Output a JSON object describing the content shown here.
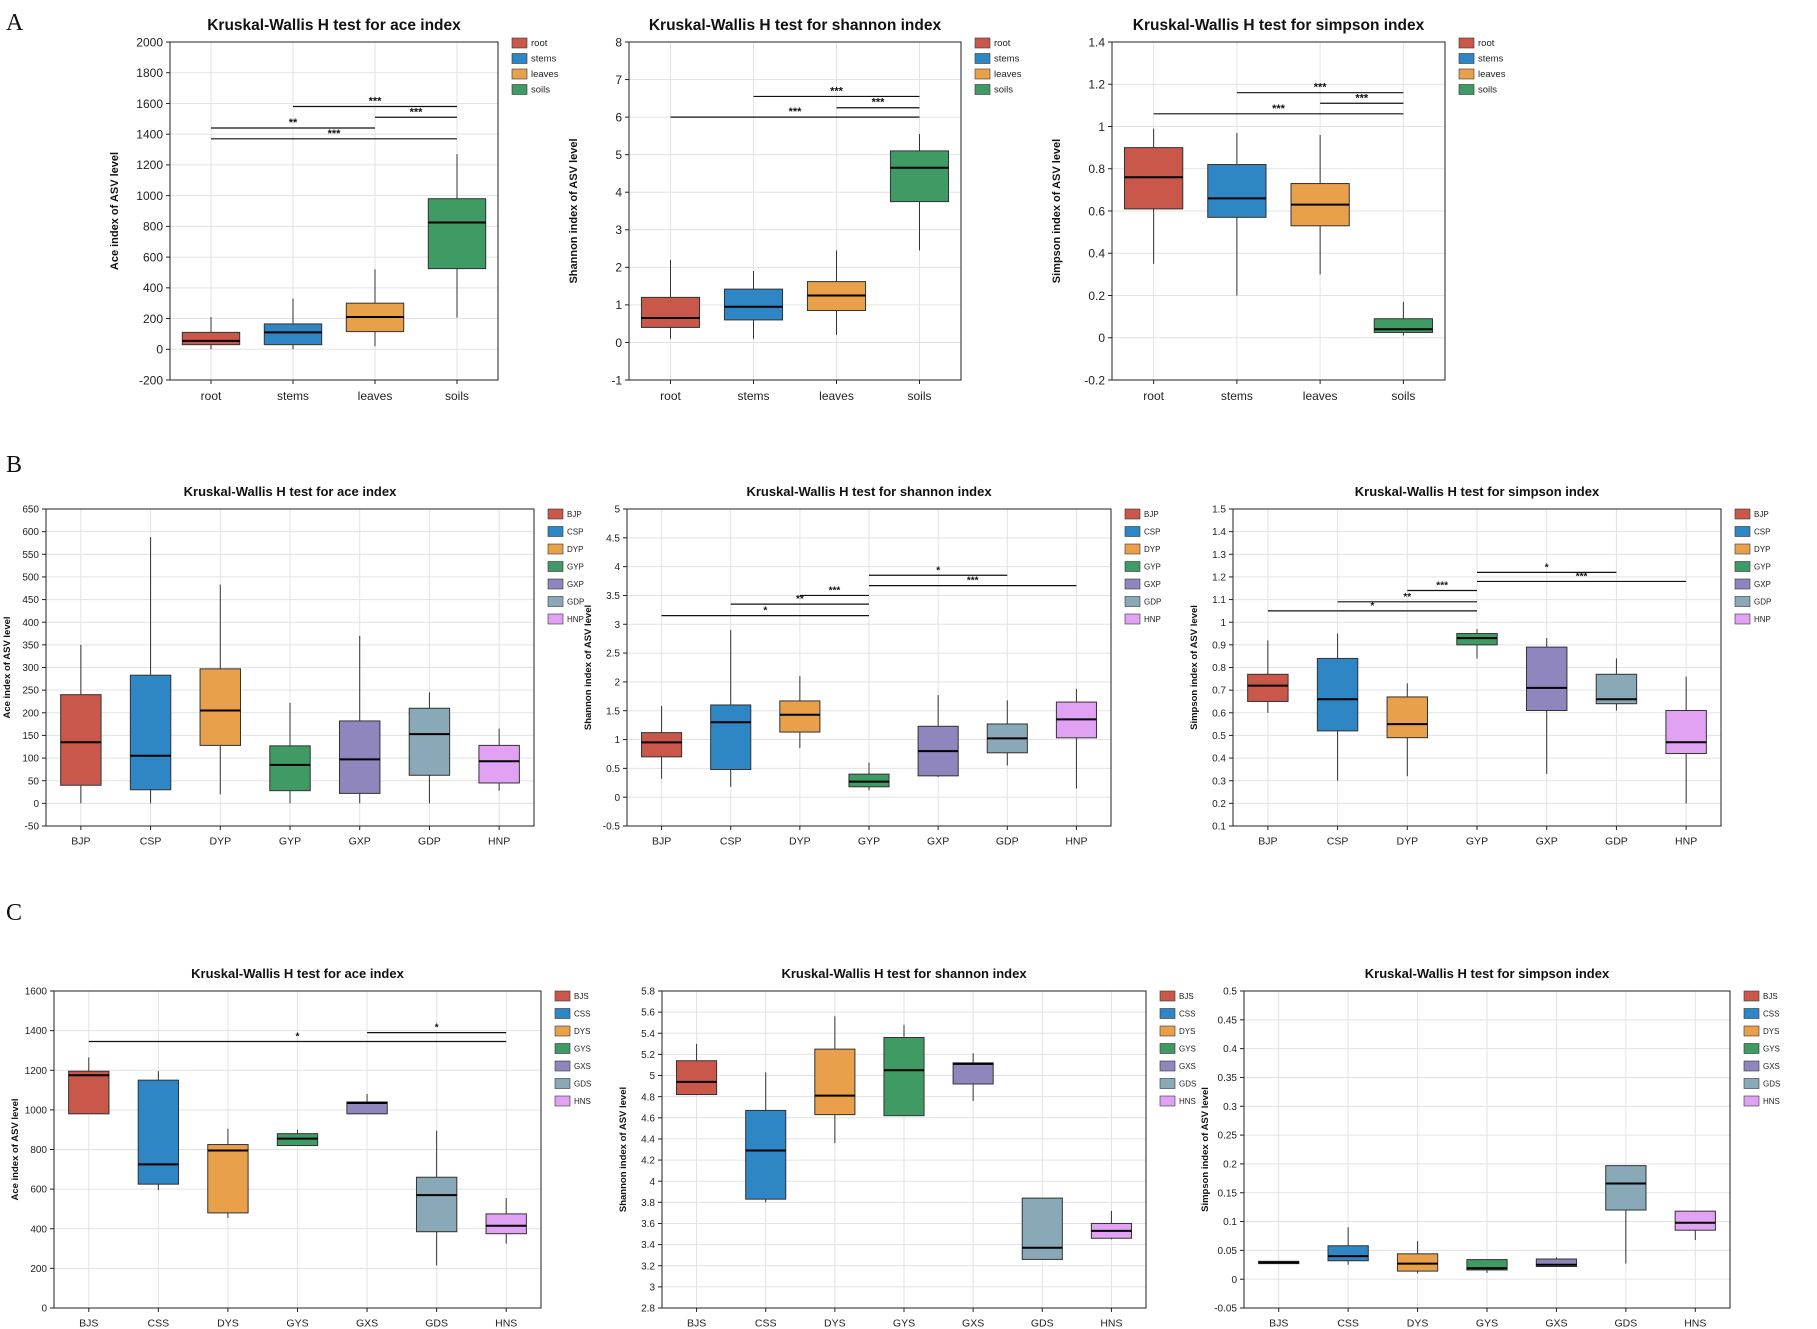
{
  "panel_labels": [
    "A",
    "B",
    "C"
  ],
  "chart_data": [
    {
      "type": "box",
      "row": 0,
      "col": 0,
      "title": "Kruskal-Wallis H test for ace index",
      "ylabel": "Ace index of ASV level",
      "ylim": [
        -200,
        2000
      ],
      "yticks": [
        -200,
        0,
        200,
        400,
        600,
        800,
        1000,
        1200,
        1400,
        1600,
        1800,
        2000
      ],
      "categories": [
        "root",
        "stems",
        "leaves",
        "soils"
      ],
      "colors": [
        "#c9574a",
        "#2f86c4",
        "#e8a04b",
        "#3f9a64"
      ],
      "boxes": [
        {
          "min": 0,
          "q1": 30,
          "median": 55,
          "q3": 110,
          "max": 210
        },
        {
          "min": 0,
          "q1": 30,
          "median": 110,
          "q3": 165,
          "max": 330
        },
        {
          "min": 20,
          "q1": 115,
          "median": 210,
          "q3": 300,
          "max": 520
        },
        {
          "min": 205,
          "q1": 525,
          "median": 825,
          "q3": 980,
          "max": 1270
        }
      ],
      "legend": [
        "root",
        "stems",
        "leaves",
        "soils"
      ],
      "significance": [
        {
          "from": 1,
          "to": 3,
          "y": 1580,
          "label": "***"
        },
        {
          "from": 0,
          "to": 2,
          "y": 1440,
          "label": "**"
        },
        {
          "from": 2,
          "to": 3,
          "y": 1510,
          "label": "***"
        },
        {
          "from": 0,
          "to": 3,
          "y": 1370,
          "label": "***"
        }
      ]
    },
    {
      "type": "box",
      "row": 0,
      "col": 1,
      "title": "Kruskal-Wallis H test for shannon index",
      "ylabel": "Shannon index of ASV level",
      "ylim": [
        -1,
        8
      ],
      "yticks": [
        -1,
        0,
        1,
        2,
        3,
        4,
        5,
        6,
        7,
        8
      ],
      "categories": [
        "root",
        "stems",
        "leaves",
        "soils"
      ],
      "colors": [
        "#c9574a",
        "#2f86c4",
        "#e8a04b",
        "#3f9a64"
      ],
      "boxes": [
        {
          "min": 0.1,
          "q1": 0.4,
          "median": 0.65,
          "q3": 1.2,
          "max": 2.2
        },
        {
          "min": 0.1,
          "q1": 0.6,
          "median": 0.95,
          "q3": 1.42,
          "max": 1.9
        },
        {
          "min": 0.2,
          "q1": 0.85,
          "median": 1.25,
          "q3": 1.62,
          "max": 2.45
        },
        {
          "min": 2.45,
          "q1": 3.75,
          "median": 4.65,
          "q3": 5.1,
          "max": 5.55
        }
      ],
      "legend": [
        "root",
        "stems",
        "leaves",
        "soils"
      ],
      "significance": [
        {
          "from": 1,
          "to": 3,
          "y": 6.55,
          "label": "***"
        },
        {
          "from": 2,
          "to": 3,
          "y": 6.25,
          "label": "***"
        },
        {
          "from": 0,
          "to": 3,
          "y": 6.0,
          "label": "***"
        }
      ]
    },
    {
      "type": "box",
      "row": 0,
      "col": 2,
      "title": "Kruskal-Wallis H test for simpson index",
      "ylabel": "Simpson index of ASV level",
      "ylim": [
        -0.2,
        1.4
      ],
      "yticks": [
        -0.2,
        0,
        0.2,
        0.4,
        0.6,
        0.8,
        1,
        1.2,
        1.4
      ],
      "categories": [
        "root",
        "stems",
        "leaves",
        "soils"
      ],
      "colors": [
        "#c9574a",
        "#2f86c4",
        "#e8a04b",
        "#3f9a64"
      ],
      "boxes": [
        {
          "min": 0.35,
          "q1": 0.61,
          "median": 0.76,
          "q3": 0.9,
          "max": 0.99
        },
        {
          "min": 0.2,
          "q1": 0.57,
          "median": 0.66,
          "q3": 0.82,
          "max": 0.97
        },
        {
          "min": 0.3,
          "q1": 0.53,
          "median": 0.63,
          "q3": 0.73,
          "max": 0.96
        },
        {
          "min": 0.01,
          "q1": 0.025,
          "median": 0.04,
          "q3": 0.09,
          "max": 0.17
        }
      ],
      "legend": [
        "root",
        "stems",
        "leaves",
        "soils"
      ],
      "significance": [
        {
          "from": 1,
          "to": 3,
          "y": 1.16,
          "label": "***"
        },
        {
          "from": 2,
          "to": 3,
          "y": 1.11,
          "label": "***"
        },
        {
          "from": 0,
          "to": 3,
          "y": 1.06,
          "label": "***"
        }
      ]
    },
    {
      "type": "box",
      "row": 1,
      "col": 0,
      "title": "Kruskal-Wallis H test for ace index",
      "ylabel": "Ace index of ASV level",
      "ylim": [
        -50,
        650
      ],
      "yticks": [
        -50,
        0,
        50,
        100,
        150,
        200,
        250,
        300,
        350,
        400,
        450,
        500,
        550,
        600,
        650
      ],
      "categories": [
        "BJP",
        "CSP",
        "DYP",
        "GYP",
        "GXP",
        "GDP",
        "HNP"
      ],
      "colors": [
        "#c9574a",
        "#2f86c4",
        "#e8a04b",
        "#3f9a64",
        "#8f86be",
        "#89a9b8",
        "#e2a2f3"
      ],
      "boxes": [
        {
          "min": 0,
          "q1": 40,
          "median": 135,
          "q3": 240,
          "max": 350
        },
        {
          "min": 0,
          "q1": 30,
          "median": 105,
          "q3": 283,
          "max": 588
        },
        {
          "min": 20,
          "q1": 128,
          "median": 205,
          "q3": 297,
          "max": 483
        },
        {
          "min": 0,
          "q1": 28,
          "median": 85,
          "q3": 127,
          "max": 222
        },
        {
          "min": 0,
          "q1": 22,
          "median": 97,
          "q3": 182,
          "max": 370
        },
        {
          "min": 0,
          "q1": 62,
          "median": 153,
          "q3": 210,
          "max": 245
        },
        {
          "min": 28,
          "q1": 45,
          "median": 93,
          "q3": 128,
          "max": 165
        }
      ],
      "legend": [
        "BJP",
        "CSP",
        "DYP",
        "GYP",
        "GXP",
        "GDP",
        "HNP"
      ],
      "significance": []
    },
    {
      "type": "box",
      "row": 1,
      "col": 1,
      "title": "Kruskal-Wallis H test for shannon index",
      "ylabel": "Shannon index of ASV level",
      "ylim": [
        -0.5,
        5
      ],
      "yticks": [
        -0.5,
        0,
        0.5,
        1,
        1.5,
        2,
        2.5,
        3,
        3.5,
        4,
        4.5,
        5
      ],
      "categories": [
        "BJP",
        "CSP",
        "DYP",
        "GYP",
        "GXP",
        "GDP",
        "HNP"
      ],
      "colors": [
        "#c9574a",
        "#2f86c4",
        "#e8a04b",
        "#3f9a64",
        "#8f86be",
        "#89a9b8",
        "#e2a2f3"
      ],
      "boxes": [
        {
          "min": 0.32,
          "q1": 0.7,
          "median": 0.95,
          "q3": 1.12,
          "max": 1.58
        },
        {
          "min": 0.18,
          "q1": 0.48,
          "median": 1.3,
          "q3": 1.6,
          "max": 2.9
        },
        {
          "min": 0.85,
          "q1": 1.13,
          "median": 1.43,
          "q3": 1.67,
          "max": 2.1
        },
        {
          "min": 0.12,
          "q1": 0.18,
          "median": 0.27,
          "q3": 0.4,
          "max": 0.6
        },
        {
          "min": 0.35,
          "q1": 0.37,
          "median": 0.8,
          "q3": 1.23,
          "max": 1.77
        },
        {
          "min": 0.55,
          "q1": 0.77,
          "median": 1.02,
          "q3": 1.27,
          "max": 1.68
        },
        {
          "min": 0.15,
          "q1": 1.03,
          "median": 1.35,
          "q3": 1.65,
          "max": 1.88
        }
      ],
      "legend": [
        "BJP",
        "CSP",
        "DYP",
        "GYP",
        "GXP",
        "GDP",
        "HNP"
      ],
      "significance": [
        {
          "from": 3,
          "to": 5,
          "y": 3.85,
          "label": "*"
        },
        {
          "from": 3,
          "to": 6,
          "y": 3.67,
          "label": "***"
        },
        {
          "from": 2,
          "to": 3,
          "y": 3.5,
          "label": "***"
        },
        {
          "from": 1,
          "to": 3,
          "y": 3.35,
          "label": "**"
        },
        {
          "from": 0,
          "to": 3,
          "y": 3.15,
          "label": "*"
        }
      ]
    },
    {
      "type": "box",
      "row": 1,
      "col": 2,
      "title": "Kruskal-Wallis H test for simpson index",
      "ylabel": "Simpson index of ASV level",
      "ylim": [
        0.1,
        1.5
      ],
      "yticks": [
        0.1,
        0.2,
        0.3,
        0.4,
        0.5,
        0.6,
        0.7,
        0.8,
        0.9,
        1,
        1.1,
        1.2,
        1.3,
        1.4,
        1.5
      ],
      "categories": [
        "BJP",
        "CSP",
        "DYP",
        "GYP",
        "GXP",
        "GDP",
        "HNP"
      ],
      "colors": [
        "#c9574a",
        "#2f86c4",
        "#e8a04b",
        "#3f9a64",
        "#8f86be",
        "#89a9b8",
        "#e2a2f3"
      ],
      "boxes": [
        {
          "min": 0.6,
          "q1": 0.65,
          "median": 0.72,
          "q3": 0.77,
          "max": 0.92
        },
        {
          "min": 0.3,
          "q1": 0.52,
          "median": 0.66,
          "q3": 0.84,
          "max": 0.95
        },
        {
          "min": 0.32,
          "q1": 0.49,
          "median": 0.55,
          "q3": 0.67,
          "max": 0.73
        },
        {
          "min": 0.84,
          "q1": 0.9,
          "median": 0.93,
          "q3": 0.95,
          "max": 0.97
        },
        {
          "min": 0.33,
          "q1": 0.61,
          "median": 0.71,
          "q3": 0.89,
          "max": 0.93
        },
        {
          "min": 0.61,
          "q1": 0.64,
          "median": 0.66,
          "q3": 0.77,
          "max": 0.84
        },
        {
          "min": 0.2,
          "q1": 0.42,
          "median": 0.47,
          "q3": 0.61,
          "max": 0.76
        }
      ],
      "legend": [
        "BJP",
        "CSP",
        "DYP",
        "GYP",
        "GXP",
        "GDP",
        "HNP"
      ],
      "significance": [
        {
          "from": 3,
          "to": 5,
          "y": 1.22,
          "label": "*"
        },
        {
          "from": 3,
          "to": 6,
          "y": 1.18,
          "label": "***"
        },
        {
          "from": 2,
          "to": 3,
          "y": 1.14,
          "label": "***"
        },
        {
          "from": 1,
          "to": 3,
          "y": 1.09,
          "label": "**"
        },
        {
          "from": 0,
          "to": 3,
          "y": 1.05,
          "label": "*"
        }
      ]
    },
    {
      "type": "box",
      "row": 2,
      "col": 0,
      "title": "Kruskal-Wallis H test for ace index",
      "ylabel": "Ace index of ASV level",
      "ylim": [
        0,
        1600
      ],
      "yticks": [
        0,
        200,
        400,
        600,
        800,
        1000,
        1200,
        1400,
        1600
      ],
      "categories": [
        "BJS",
        "CSS",
        "DYS",
        "GYS",
        "GXS",
        "GDS",
        "HNS"
      ],
      "colors": [
        "#c9574a",
        "#2f86c4",
        "#e8a04b",
        "#3f9a64",
        "#8f86be",
        "#89a9b8",
        "#e2a2f3"
      ],
      "boxes": [
        {
          "min": 980,
          "q1": 980,
          "median": 1175,
          "q3": 1195,
          "max": 1265
        },
        {
          "min": 595,
          "q1": 625,
          "median": 725,
          "q3": 1150,
          "max": 1195
        },
        {
          "min": 455,
          "q1": 480,
          "median": 795,
          "q3": 825,
          "max": 905
        },
        {
          "min": 820,
          "q1": 820,
          "median": 855,
          "q3": 880,
          "max": 900
        },
        {
          "min": 980,
          "q1": 980,
          "median": 1035,
          "q3": 1040,
          "max": 1080
        },
        {
          "min": 215,
          "q1": 385,
          "median": 570,
          "q3": 660,
          "max": 895
        },
        {
          "min": 325,
          "q1": 375,
          "median": 415,
          "q3": 475,
          "max": 555
        }
      ],
      "legend": [
        "BJS",
        "CSS",
        "DYS",
        "GYS",
        "GXS",
        "GDS",
        "HNS"
      ],
      "significance": [
        {
          "from": 4,
          "to": 6,
          "y": 1390,
          "label": "*"
        },
        {
          "from": 0,
          "to": 6,
          "y": 1345,
          "label": "*"
        }
      ]
    },
    {
      "type": "box",
      "row": 2,
      "col": 1,
      "title": "Kruskal-Wallis H test for shannon index",
      "ylabel": "Shannon index of ASV level",
      "ylim": [
        2.8,
        5.8
      ],
      "yticks": [
        2.8,
        3,
        3.2,
        3.4,
        3.6,
        3.8,
        4,
        4.2,
        4.4,
        4.6,
        4.8,
        5,
        5.2,
        5.4,
        5.6,
        5.8
      ],
      "categories": [
        "BJS",
        "CSS",
        "DYS",
        "GYS",
        "GXS",
        "GDS",
        "HNS"
      ],
      "colors": [
        "#c9574a",
        "#2f86c4",
        "#e8a04b",
        "#3f9a64",
        "#8f86be",
        "#89a9b8",
        "#e2a2f3"
      ],
      "boxes": [
        {
          "min": 4.82,
          "q1": 4.82,
          "median": 4.94,
          "q3": 5.14,
          "max": 5.3
        },
        {
          "min": 3.8,
          "q1": 3.83,
          "median": 4.29,
          "q3": 4.67,
          "max": 5.03
        },
        {
          "min": 4.36,
          "q1": 4.63,
          "median": 4.81,
          "q3": 5.25,
          "max": 5.56
        },
        {
          "min": 4.62,
          "q1": 4.62,
          "median": 5.05,
          "q3": 5.36,
          "max": 5.48
        },
        {
          "min": 4.76,
          "q1": 4.92,
          "median": 5.11,
          "q3": 5.12,
          "max": 5.21
        },
        {
          "min": 3.26,
          "q1": 3.26,
          "median": 3.37,
          "q3": 3.84,
          "max": 3.84
        },
        {
          "min": 3.45,
          "q1": 3.46,
          "median": 3.53,
          "q3": 3.6,
          "max": 3.72
        }
      ],
      "legend": [
        "BJS",
        "CSS",
        "DYS",
        "GYS",
        "GXS",
        "GDS",
        "HNS"
      ],
      "significance": []
    },
    {
      "type": "box",
      "row": 2,
      "col": 2,
      "title": "Kruskal-Wallis H test for simpson index",
      "ylabel": "Simpson index of ASV level",
      "ylim": [
        -0.05,
        0.5
      ],
      "yticks": [
        -0.05,
        0,
        0.05,
        0.1,
        0.15,
        0.2,
        0.25,
        0.3,
        0.35,
        0.4,
        0.45,
        0.5
      ],
      "categories": [
        "BJS",
        "CSS",
        "DYS",
        "GYS",
        "GXS",
        "GDS",
        "HNS"
      ],
      "colors": [
        "#c9574a",
        "#2f86c4",
        "#e8a04b",
        "#3f9a64",
        "#8f86be",
        "#89a9b8",
        "#e2a2f3"
      ],
      "boxes": [
        {
          "min": 0.027,
          "q1": 0.027,
          "median": 0.029,
          "q3": 0.031,
          "max": 0.031
        },
        {
          "min": 0.025,
          "q1": 0.032,
          "median": 0.04,
          "q3": 0.058,
          "max": 0.09
        },
        {
          "min": 0.01,
          "q1": 0.014,
          "median": 0.027,
          "q3": 0.044,
          "max": 0.066
        },
        {
          "min": 0.011,
          "q1": 0.016,
          "median": 0.019,
          "q3": 0.034,
          "max": 0.034
        },
        {
          "min": 0.022,
          "q1": 0.022,
          "median": 0.025,
          "q3": 0.035,
          "max": 0.038
        },
        {
          "min": 0.027,
          "q1": 0.12,
          "median": 0.166,
          "q3": 0.197,
          "max": 0.197
        },
        {
          "min": 0.068,
          "q1": 0.085,
          "median": 0.098,
          "q3": 0.118,
          "max": 0.118
        }
      ],
      "legend": [
        "BJS",
        "CSS",
        "DYS",
        "GYS",
        "GXS",
        "GDS",
        "HNS"
      ],
      "significance": []
    }
  ]
}
